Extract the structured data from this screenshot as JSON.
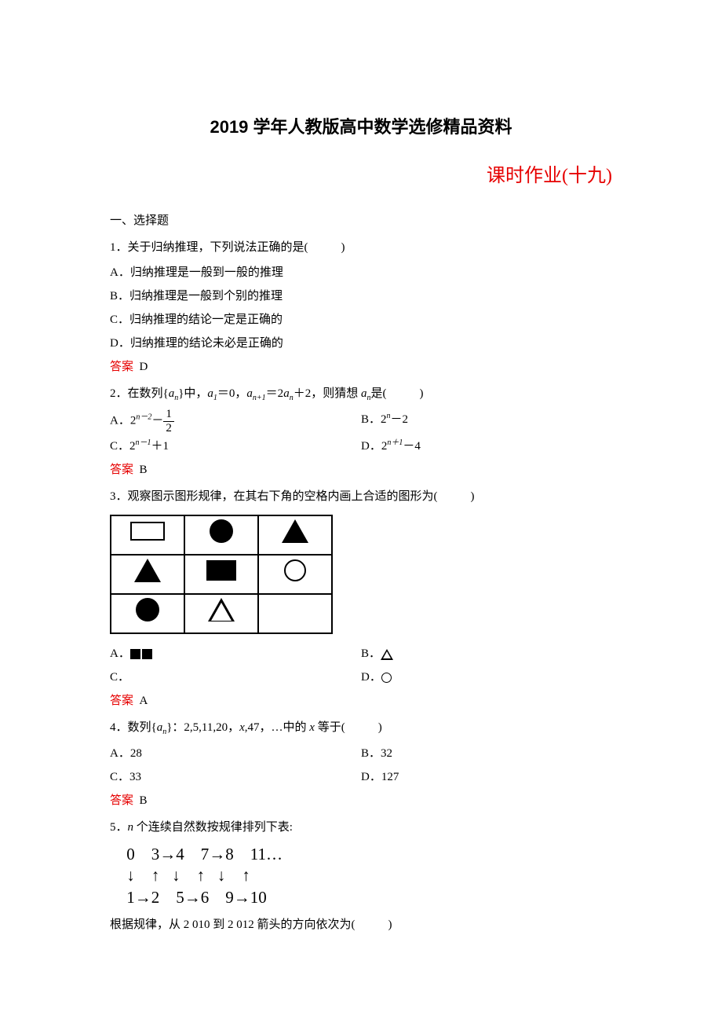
{
  "title": "2019 学年人教版高中数学选修精品资料",
  "subtitle": "课时作业(十九)",
  "section1": "一、选择题",
  "answer_label": "答案",
  "paren_blank": "(　　)",
  "q1": {
    "stem": "1．关于归纳推理，下列说法正确的是",
    "A": "A．归纳推理是一般到一般的推理",
    "B": "B．归纳推理是一般到个别的推理",
    "C": "C．归纳推理的结论一定是正确的",
    "D": "D．归纳推理的结论未必是正确的",
    "ans": "D"
  },
  "q2": {
    "stem_pre": "2．在数列{",
    "stem_mid1": "}中，",
    "stem_mid2": "＝0，",
    "stem_mid3": "＝2",
    "stem_mid4": "＋2，则猜想 ",
    "stem_post": "是",
    "A_pre": "A．2",
    "A_exp": "n－2",
    "A_mid": "－",
    "B_pre": "B．2",
    "B_exp": "n",
    "B_post": "－2",
    "C_pre": "C．2",
    "C_exp": "n－1",
    "C_post": "＋1",
    "D_pre": "D．2",
    "D_exp": "n＋1",
    "D_post": "－4",
    "ans": "B",
    "frac_num": "1",
    "frac_den": "2"
  },
  "q3": {
    "stem": "3．观察图示图形规律，在其右下角的空格内画上合适的图形为",
    "A": "A．",
    "B": "B．",
    "C": "C．",
    "D": "D．",
    "ans": "A"
  },
  "q4": {
    "stem_pre": "4．数列{",
    "stem_mid": "}：2,5,11,20，",
    "stem_post": ",47，…中的 ",
    "stem_end": " 等于",
    "A": "A．28",
    "B": "B．32",
    "C": "C．33",
    "D": "D．127",
    "ans": "B"
  },
  "q5": {
    "stem_pre": "5．",
    "stem_post": " 个连续自然数按规律排列下表:",
    "arrows_line1": " 0    3→4    7→8    11…",
    "arrows_line2": " ↓    ↑   ↓    ↑   ↓    ↑",
    "arrows_line3": " 1→2    5→6    9→10",
    "tail": "根据规律，从 2 010 到 2 012 箭头的方向依次为"
  }
}
